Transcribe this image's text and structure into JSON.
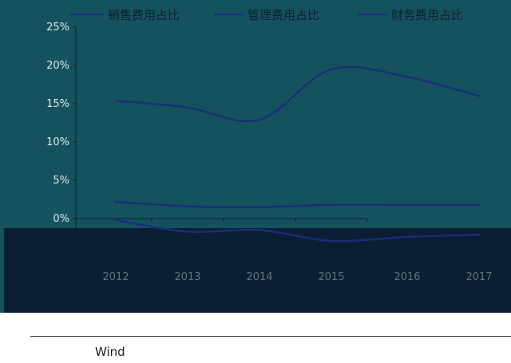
{
  "chart_data": {
    "type": "line",
    "categories": [
      "2012",
      "2013",
      "2014",
      "2015",
      "2016",
      "2017"
    ],
    "series": [
      {
        "name": "销售费用占比",
        "values": [
          15.4,
          14.5,
          12.9,
          19.5,
          18.5,
          16.0
        ]
      },
      {
        "name": "管理费用占比",
        "values": [
          2.2,
          1.6,
          1.5,
          1.8,
          1.8,
          1.8
        ]
      },
      {
        "name": "财务费用占比",
        "values": [
          -0.2,
          -1.7,
          -1.5,
          -2.9,
          -2.4,
          -2.1
        ]
      }
    ],
    "ylim": [
      -10,
      25
    ],
    "yticks": [
      0,
      5,
      10,
      15,
      20,
      25
    ],
    "ytick_labels": [
      "0%",
      "5%",
      "10%",
      "15%",
      "20%",
      "25%"
    ],
    "legend": "top",
    "grid": false,
    "colors": {
      "series": [
        "#1a2e7a",
        "#1a2e7a",
        "#1a2e7a"
      ],
      "plot_bg_upper": "#14535d",
      "plot_bg_lower": "#0c1e33"
    }
  },
  "source": "Wind"
}
